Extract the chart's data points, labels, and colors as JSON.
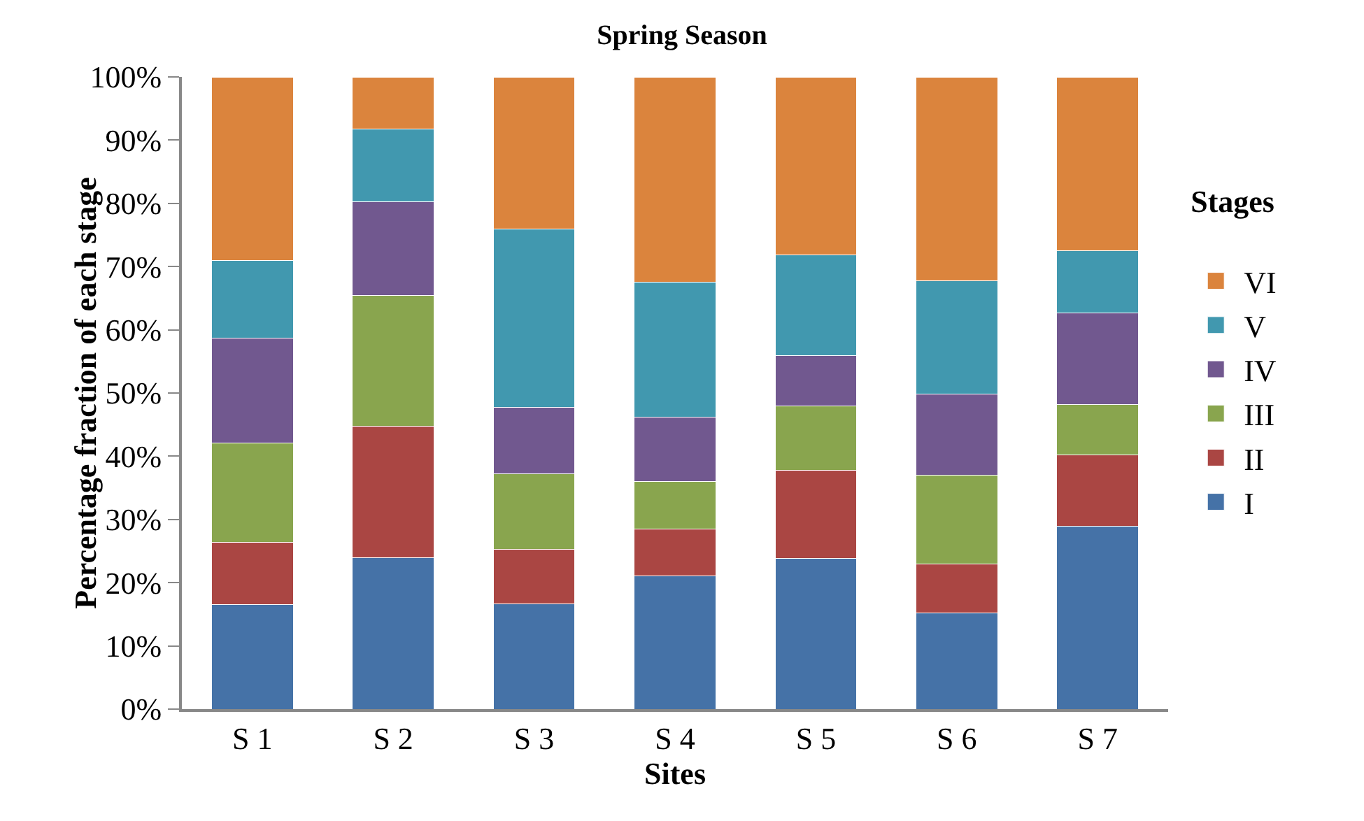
{
  "chart_data": {
    "type": "bar",
    "stacked": true,
    "title": "Spring Season",
    "xlabel": "Sites",
    "ylabel": "Percentage fraction of each stage",
    "legend_title": "Stages",
    "legend": "right",
    "grid": false,
    "categories": [
      "S 1",
      "S 2",
      "S 3",
      "S 4",
      "S 5",
      "S 6",
      "S 7"
    ],
    "ylim": [
      0,
      100
    ],
    "yticks": [
      {
        "value": 0,
        "label": "0%"
      },
      {
        "value": 10,
        "label": "10%"
      },
      {
        "value": 20,
        "label": "20%"
      },
      {
        "value": 30,
        "label": "30%"
      },
      {
        "value": 40,
        "label": "40%"
      },
      {
        "value": 50,
        "label": "50%"
      },
      {
        "value": 60,
        "label": "60%"
      },
      {
        "value": 70,
        "label": "70%"
      },
      {
        "value": 80,
        "label": "80%"
      },
      {
        "value": 90,
        "label": "90%"
      },
      {
        "value": 100,
        "label": "100%"
      }
    ],
    "series": [
      {
        "name": "I",
        "color": "#4572a7",
        "values": [
          16.5,
          24.0,
          16.6,
          21.1,
          23.8,
          15.2,
          28.9
        ]
      },
      {
        "name": "II",
        "color": "#aa4643",
        "values": [
          9.9,
          20.7,
          8.7,
          7.4,
          14.0,
          7.7,
          11.3
        ]
      },
      {
        "name": "III",
        "color": "#89a54e",
        "values": [
          15.7,
          20.7,
          11.9,
          7.5,
          10.1,
          14.1,
          8.0
        ]
      },
      {
        "name": "IV",
        "color": "#71588f",
        "values": [
          16.6,
          14.9,
          10.5,
          10.2,
          8.0,
          12.8,
          14.5
        ]
      },
      {
        "name": "V",
        "color": "#4198af",
        "values": [
          12.3,
          11.5,
          28.2,
          21.3,
          15.9,
          18.0,
          9.8
        ]
      },
      {
        "name": "VI",
        "color": "#db843d",
        "values": [
          29.0,
          8.2,
          24.1,
          32.5,
          28.2,
          32.2,
          27.5
        ]
      }
    ]
  }
}
